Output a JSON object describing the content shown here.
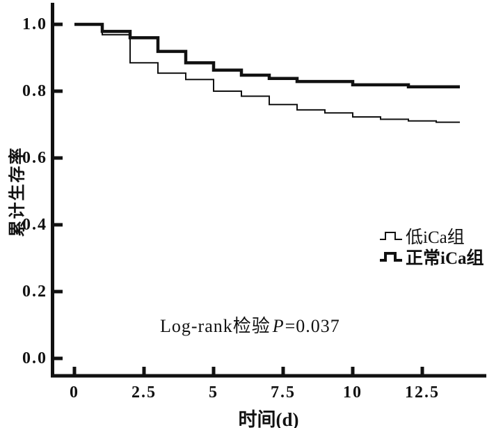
{
  "figure": {
    "background": "#ffffff",
    "ink_color": "#111111"
  },
  "chart_data": {
    "type": "line",
    "subtype": "kaplan-meier-step-curves",
    "title": "",
    "xlabel": "时间(d)",
    "ylabel": "累计生存率",
    "x_ticks": {
      "values": [
        0,
        2.5,
        5,
        7.5,
        10,
        12.5
      ],
      "labels": [
        "0",
        "2.5",
        "5",
        "7.5",
        "10",
        "12.5"
      ]
    },
    "y_ticks": {
      "values": [
        0.0,
        0.2,
        0.4,
        0.6,
        0.8,
        1.0
      ],
      "labels": [
        "0.0",
        "0.2",
        "0.4",
        "0.6",
        "0.8",
        "1.0"
      ]
    },
    "xlim": [
      0,
      14.8
    ],
    "ylim": [
      0,
      1.06
    ],
    "grid": false,
    "t_end": 13.85,
    "series": [
      {
        "name": "低iCa组",
        "style": "thin",
        "stroke_width": 2,
        "steps": [
          [
            0,
            1.0
          ],
          [
            1,
            0.969
          ],
          [
            2,
            0.885
          ],
          [
            3,
            0.854
          ],
          [
            4,
            0.835
          ],
          [
            5,
            0.8
          ],
          [
            6,
            0.785
          ],
          [
            7,
            0.76
          ],
          [
            8,
            0.744
          ],
          [
            9,
            0.735
          ],
          [
            10,
            0.723
          ],
          [
            11,
            0.716
          ],
          [
            12,
            0.711
          ],
          [
            13,
            0.707
          ]
        ]
      },
      {
        "name": "正常iCa组",
        "style": "thick",
        "stroke_width": 4.5,
        "steps": [
          [
            0,
            1.0
          ],
          [
            1,
            0.979
          ],
          [
            2,
            0.96
          ],
          [
            3,
            0.919
          ],
          [
            4,
            0.885
          ],
          [
            5,
            0.863
          ],
          [
            6,
            0.848
          ],
          [
            7,
            0.838
          ],
          [
            8,
            0.829
          ],
          [
            10,
            0.819
          ],
          [
            12,
            0.813
          ]
        ]
      }
    ],
    "legend": {
      "position": "right-middle",
      "entries": [
        "低iCa组",
        "正常iCa组"
      ]
    },
    "annotation": {
      "prefix": "Log-rank检验",
      "p_label": "P",
      "value_text": "=0.037"
    }
  }
}
